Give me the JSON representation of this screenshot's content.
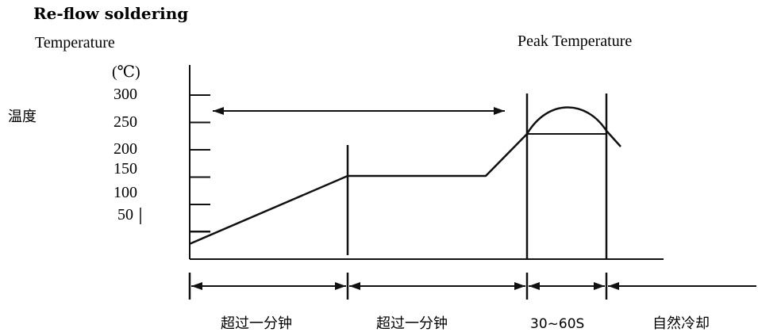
{
  "chart_data": {
    "type": "line",
    "title": "Re-flow soldering",
    "ylabel": "Temperature",
    "ylabel_cn": "温度",
    "yunit": "(℃)",
    "peak_label": "Peak Temperature",
    "yticks": [
      "300",
      "250",
      "200",
      "150",
      "100",
      "50"
    ],
    "ytick_values": [
      300,
      250,
      200,
      150,
      100,
      50
    ],
    "ylim": [
      0,
      340
    ],
    "phases": [
      {
        "label": "超过一分钟"
      },
      {
        "label": "超过一分钟"
      },
      {
        "label": "30~60S"
      },
      {
        "label": "自然冷却"
      }
    ],
    "profile": [
      {
        "t": 0,
        "temp": 25
      },
      {
        "t": 1.0,
        "temp": 150
      },
      {
        "t": 1.87,
        "temp": 150
      },
      {
        "t": 2.1,
        "temp": 220
      },
      {
        "t": 2.3,
        "temp": 262
      },
      {
        "t": 2.5,
        "temp": 220
      },
      {
        "t": 2.6,
        "temp": 200
      }
    ]
  }
}
